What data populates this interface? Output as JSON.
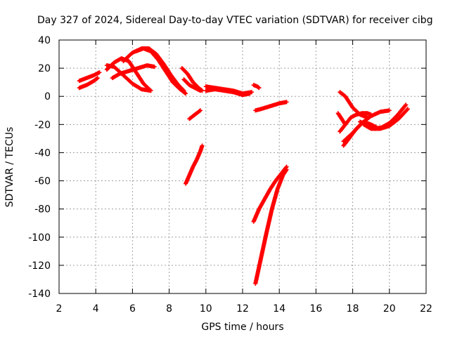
{
  "chart_data": {
    "type": "scatter",
    "title": "Day 327 of 2024, Sidereal Day-to-day VTEC variation (SDTVAR) for receiver cibg",
    "xlabel": "GPS time / hours",
    "ylabel": "SDTVAR / TECUs",
    "xlim": [
      2,
      22
    ],
    "ylim": [
      -140,
      40
    ],
    "x_ticks": [
      "2",
      "4",
      "6",
      "8",
      "10",
      "12",
      "14",
      "16",
      "18",
      "20",
      "22"
    ],
    "y_ticks": [
      "40",
      "20",
      "0",
      "-20",
      "-40",
      "-60",
      "-80",
      "-100",
      "-120",
      "-140"
    ],
    "grid": true,
    "marker": "+",
    "color": "#ff0000",
    "tracks": [
      {
        "x": [
          3.1,
          3.5,
          3.9,
          4.1
        ],
        "y": [
          6,
          8,
          11,
          13
        ]
      },
      {
        "x": [
          3.1,
          3.5,
          3.9,
          4.2
        ],
        "y": [
          11,
          13,
          15,
          17
        ]
      },
      {
        "x": [
          4.6,
          5.0,
          5.4,
          5.8,
          6.2,
          6.6,
          7.0
        ],
        "y": [
          19,
          24,
          27,
          25,
          17,
          9,
          4
        ]
      },
      {
        "x": [
          4.9,
          5.3,
          5.8,
          6.3,
          6.8,
          7.2
        ],
        "y": [
          13,
          16,
          18,
          20,
          22,
          21
        ]
      },
      {
        "x": [
          4.6,
          5.0,
          5.5,
          6.0,
          6.5,
          7.0
        ],
        "y": [
          22,
          21,
          15,
          9,
          5,
          4
        ]
      },
      {
        "x": [
          5.5,
          6.0,
          6.5,
          6.9,
          7.3,
          7.7,
          8.1,
          8.5,
          8.8
        ],
        "y": [
          25,
          31,
          34,
          34,
          30,
          23,
          15,
          8,
          4
        ]
      },
      {
        "x": [
          6.2,
          6.6,
          7.0,
          7.4,
          7.8,
          8.2,
          8.6,
          8.9
        ],
        "y": [
          32,
          34,
          32,
          26,
          18,
          10,
          5,
          2
        ]
      },
      {
        "x": [
          8.7,
          9.0,
          9.3,
          9.6,
          9.8
        ],
        "y": [
          20,
          16,
          10,
          6,
          4
        ]
      },
      {
        "x": [
          8.8,
          9.1,
          9.4,
          9.7
        ],
        "y": [
          12,
          8,
          6,
          4
        ]
      },
      {
        "x": [
          9.1,
          9.4,
          9.7
        ],
        "y": [
          -16,
          -13,
          -10
        ]
      },
      {
        "x": [
          8.9,
          9.1,
          9.3,
          9.5,
          9.7,
          9.8
        ],
        "y": [
          -62,
          -56,
          -50,
          -45,
          -39,
          -35
        ]
      },
      {
        "x": [
          10.0,
          10.5,
          11.0,
          11.5,
          12.0,
          12.5
        ],
        "y": [
          7,
          6,
          5,
          4,
          2,
          3
        ]
      },
      {
        "x": [
          10.0,
          10.5,
          11.0,
          11.5,
          12.0,
          12.4
        ],
        "y": [
          4,
          5,
          4,
          3,
          1,
          2
        ]
      },
      {
        "x": [
          12.6,
          12.8,
          12.9
        ],
        "y": [
          8,
          7,
          6
        ]
      },
      {
        "x": [
          12.7,
          13.0,
          13.5,
          14.0,
          14.4
        ],
        "y": [
          -10,
          -9,
          -7,
          -5,
          -4
        ]
      },
      {
        "x": [
          12.6,
          12.9,
          13.2,
          13.5,
          13.8,
          14.1,
          14.4
        ],
        "y": [
          -89,
          -80,
          -73,
          -66,
          -60,
          -55,
          -50
        ]
      },
      {
        "x": [
          12.7,
          13.0,
          13.3,
          13.6,
          13.9,
          14.2,
          14.4
        ],
        "y": [
          -133,
          -115,
          -97,
          -80,
          -66,
          -56,
          -52
        ]
      },
      {
        "x": [
          17.2,
          17.4,
          17.6
        ],
        "y": [
          -12,
          -16,
          -20
        ]
      },
      {
        "x": [
          17.3,
          17.6,
          18.0,
          18.4,
          18.8
        ],
        "y": [
          3,
          0,
          -8,
          -13,
          -15
        ]
      },
      {
        "x": [
          17.5,
          18.0,
          18.5,
          19.0,
          19.5,
          20.0
        ],
        "y": [
          -32,
          -26,
          -19,
          -14,
          -11,
          -10
        ]
      },
      {
        "x": [
          17.3,
          17.6,
          17.9,
          18.2,
          18.5,
          18.8,
          19.0
        ],
        "y": [
          -25,
          -20,
          -15,
          -13,
          -12,
          -12,
          -13
        ]
      },
      {
        "x": [
          17.5,
          17.8,
          18.2,
          18.6,
          19.0,
          19.3
        ],
        "y": [
          -35,
          -30,
          -23,
          -18,
          -20,
          -22
        ]
      },
      {
        "x": [
          18.4,
          18.8,
          19.2,
          19.6,
          20.0,
          20.4,
          20.9
        ],
        "y": [
          -18,
          -21,
          -23,
          -22,
          -19,
          -14,
          -6
        ]
      },
      {
        "x": [
          18.6,
          19.0,
          19.5,
          20.0,
          20.5,
          21.0
        ],
        "y": [
          -20,
          -23,
          -23,
          -21,
          -16,
          -9
        ]
      }
    ]
  }
}
